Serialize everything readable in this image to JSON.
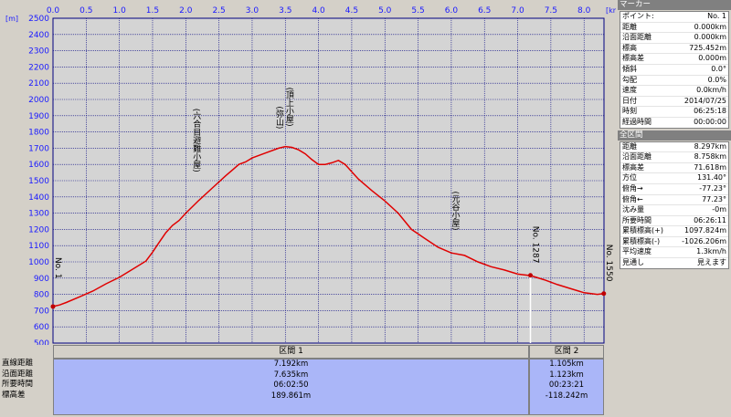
{
  "chart_data": {
    "type": "line",
    "x_unit": "[km]",
    "y_unit": "[m]",
    "xlim": [
      0,
      8.3
    ],
    "ylim": [
      500,
      2500
    ],
    "x_ticks": [
      "0.0",
      "0.5",
      "1.0",
      "1.5",
      "2.0",
      "2.5",
      "3.0",
      "3.5",
      "4.0",
      "4.5",
      "5.0",
      "5.5",
      "6.0",
      "6.5",
      "7.0",
      "7.5",
      "8.0"
    ],
    "y_ticks": [
      "2500",
      "2400",
      "2300",
      "2200",
      "2100",
      "2000",
      "1900",
      "1800",
      "1700",
      "1600",
      "1500",
      "1400",
      "1300",
      "1200",
      "1100",
      "1000",
      "900",
      "800",
      "700",
      "600",
      "500"
    ],
    "grid": true,
    "series": [
      {
        "color": "#e00000",
        "x": [
          0,
          0.1,
          0.2,
          0.4,
          0.6,
          0.8,
          1.0,
          1.2,
          1.4,
          1.5,
          1.6,
          1.7,
          1.8,
          1.9,
          2.0,
          2.2,
          2.4,
          2.6,
          2.8,
          2.9,
          3.0,
          3.2,
          3.4,
          3.5,
          3.6,
          3.7,
          3.8,
          3.9,
          4.0,
          4.1,
          4.2,
          4.3,
          4.4,
          4.6,
          4.8,
          5.0,
          5.2,
          5.4,
          5.6,
          5.8,
          6.0,
          6.2,
          6.4,
          6.6,
          6.8,
          7.0,
          7.2,
          7.4,
          7.6,
          7.8,
          8.0,
          8.2,
          8.297
        ],
        "y": [
          725,
          735,
          750,
          785,
          820,
          865,
          905,
          955,
          1005,
          1060,
          1120,
          1180,
          1225,
          1255,
          1300,
          1380,
          1455,
          1530,
          1600,
          1615,
          1640,
          1670,
          1700,
          1710,
          1705,
          1690,
          1665,
          1630,
          1600,
          1600,
          1610,
          1625,
          1600,
          1510,
          1440,
          1375,
          1300,
          1200,
          1145,
          1090,
          1055,
          1040,
          1000,
          970,
          950,
          925,
          915,
          890,
          860,
          835,
          810,
          800,
          805
        ]
      }
    ],
    "annotations": [
      {
        "text": "No. 1",
        "x": 0.0,
        "y": 725
      },
      {
        "text": "(六合目避難小屋)",
        "x": 2.15,
        "y": 1420
      },
      {
        "text": "(弥山)",
        "x": 3.4,
        "y": 1700
      },
      {
        "text": "(頂上小屋)",
        "x": 3.55,
        "y": 1710
      },
      {
        "text": "(元谷小屋)",
        "x": 6.05,
        "y": 1070
      },
      {
        "text": "No. 1287",
        "x": 7.192,
        "y": 917
      },
      {
        "text": "No. 1550",
        "x": 8.297,
        "y": 805
      }
    ]
  },
  "sections": {
    "row_labels": [
      "直線距離",
      "沿面距離",
      "所要時間",
      "標高差"
    ],
    "columns": [
      {
        "header": "区間 1",
        "values": [
          "7.192km",
          "7.635km",
          "06:02:50",
          "189.861m"
        ]
      },
      {
        "header": "区間 2",
        "values": [
          "1.105km",
          "1.123km",
          "00:23:21",
          "-118.242m"
        ]
      }
    ]
  },
  "marker_panel": {
    "title": "マーカー",
    "rows": [
      {
        "label": "ポイント:",
        "value": "No. 1"
      },
      {
        "label": "距離",
        "value": "0.000km"
      },
      {
        "label": "沿面距離",
        "value": "0.000km"
      },
      {
        "label": "標高",
        "value": "725.452m"
      },
      {
        "label": "標高差",
        "value": "0.000m"
      },
      {
        "label": "傾斜",
        "value": "0.0°"
      },
      {
        "label": "勾配",
        "value": "0.0%"
      },
      {
        "label": "速度",
        "value": "0.0km/h"
      },
      {
        "label": "日付",
        "value": "2014/07/25"
      },
      {
        "label": "時刻",
        "value": "06:25:18"
      },
      {
        "label": "経過時間",
        "value": "00:00:00"
      }
    ]
  },
  "total_panel": {
    "title": "全区間",
    "rows": [
      {
        "label": "距離",
        "value": "8.297km"
      },
      {
        "label": "沿面距離",
        "value": "8.758km"
      },
      {
        "label": "標高差",
        "value": "71.618m"
      },
      {
        "label": "方位",
        "value": "131.40°"
      },
      {
        "label": "俯角→",
        "value": "-77.23°"
      },
      {
        "label": "俯角←",
        "value": "77.23°"
      },
      {
        "label": "沈み量",
        "value": "-0m"
      },
      {
        "label": "所要時間",
        "value": "06:26:11"
      },
      {
        "label": "累積標高(+)",
        "value": "1097.824m"
      },
      {
        "label": "累積標高(-)",
        "value": "-1026.206m"
      },
      {
        "label": "平均速度",
        "value": "1.3km/h"
      },
      {
        "label": "見通し",
        "value": "見えます"
      }
    ]
  }
}
